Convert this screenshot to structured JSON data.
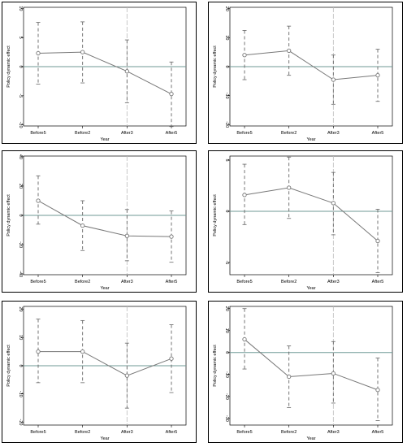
{
  "colors": {
    "zero_line": "#6f9a96",
    "series": "#777777",
    "ci": "#666666",
    "vline": "#bdbdbd"
  },
  "chart_data": [
    {
      "type": "line",
      "xlabel": "Year",
      "ylabel": "Policy dynamic effect",
      "categories": [
        "Before5",
        "Before2",
        "After3",
        "After5"
      ],
      "series": [
        {
          "values": [
            2.3,
            2.5,
            -0.8,
            -4.7
          ]
        }
      ],
      "ci_lower": [
        -3.0,
        -2.8,
        -6.2,
        -10.3
      ],
      "ci_upper": [
        7.6,
        7.7,
        4.6,
        0.8
      ],
      "yticks": [
        -10,
        -5,
        0,
        5,
        10
      ],
      "ylim": [
        -10.2,
        10.2
      ],
      "hline": 0,
      "vline_category": "After3"
    },
    {
      "type": "line",
      "xlabel": "Year",
      "ylabel": "Policy dynamic effect",
      "categories": [
        "Before5",
        "Before2",
        "After3",
        "After5"
      ],
      "series": [
        {
          "values": [
            4.0,
            5.5,
            -4.5,
            -3.0
          ]
        }
      ],
      "ci_lower": [
        -4.5,
        -3.0,
        -13.0,
        -12.0
      ],
      "ci_upper": [
        12.5,
        14.0,
        4.0,
        6.0
      ],
      "yticks": [
        -20,
        -10,
        0,
        10,
        20
      ],
      "ylim": [
        -20.5,
        20.5
      ],
      "hline": 0,
      "vline_category": "After3"
    },
    {
      "type": "line",
      "xlabel": "Year",
      "ylabel": "Policy dynamic effect",
      "categories": [
        "Before5",
        "Before2",
        "After3",
        "After5"
      ],
      "series": [
        {
          "values": [
            10.0,
            -7.0,
            -14.0,
            -14.5
          ]
        }
      ],
      "ci_lower": [
        -6.0,
        -24.0,
        -31.0,
        -32.0
      ],
      "ci_upper": [
        27.0,
        10.0,
        4.0,
        3.0
      ],
      "yticks": [
        -40,
        -20,
        0,
        20,
        40
      ],
      "ylim": [
        -40.5,
        40.5
      ],
      "hline": 0,
      "vline_category": "After3"
    },
    {
      "type": "line",
      "xlabel": "Year",
      "ylabel": "Policy dynamic effect",
      "categories": [
        "Before5",
        "Before2",
        "After3",
        "After5"
      ],
      "series": [
        {
          "values": [
            1.6,
            2.3,
            0.8,
            -2.9
          ]
        }
      ],
      "ci_lower": [
        -1.3,
        -0.7,
        -2.3,
        -6.0
      ],
      "ci_upper": [
        4.6,
        5.3,
        3.8,
        0.2
      ],
      "yticks": [
        -5,
        0,
        5
      ],
      "ylim": [
        -6.2,
        5.4
      ],
      "hline": 0,
      "vline_category": "After3"
    },
    {
      "type": "line",
      "xlabel": "Year",
      "ylabel": "Policy dynamic effect",
      "categories": [
        "Before5",
        "Before2",
        "After3",
        "After5"
      ],
      "series": [
        {
          "values": [
            5.0,
            5.0,
            -3.5,
            2.5
          ]
        }
      ],
      "ci_lower": [
        -6.0,
        -6.0,
        -15.0,
        -9.5
      ],
      "ci_upper": [
        16.5,
        16.0,
        8.0,
        14.5
      ],
      "yticks": [
        -20,
        -10,
        0,
        10,
        20
      ],
      "ylim": [
        -21,
        21
      ],
      "hline": 0,
      "vline_category": "After3"
    },
    {
      "type": "line",
      "xlabel": "Year",
      "ylabel": "Policy dynamic effect",
      "categories": [
        "Before5",
        "Before2",
        "After3",
        "After5"
      ],
      "series": [
        {
          "values": [
            6.0,
            -11.0,
            -9.5,
            -17.0
          ]
        }
      ],
      "ci_lower": [
        -7.5,
        -25.0,
        -23.0,
        -31.0
      ],
      "ci_upper": [
        20.0,
        3.0,
        5.0,
        -2.5
      ],
      "yticks": [
        -30,
        -20,
        -10,
        0,
        10,
        20
      ],
      "ylim": [
        -33,
        21
      ],
      "hline": 0,
      "vline_category": "After3"
    }
  ]
}
